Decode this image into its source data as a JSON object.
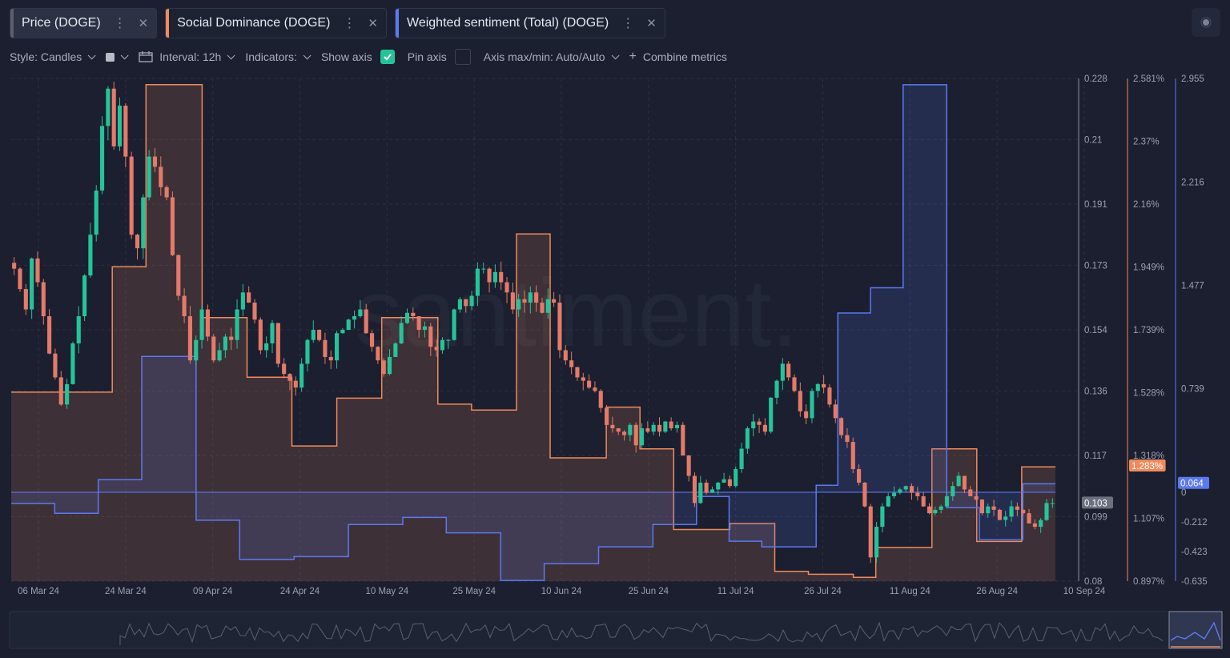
{
  "tabs": [
    {
      "label": "Price (DOGE)",
      "color": "#5b5f6c",
      "active": true
    },
    {
      "label": "Social Dominance (DOGE)",
      "color": "#f08a5d"
    },
    {
      "label": "Weighted sentiment (Total) (DOGE)",
      "color": "#5b79f0"
    }
  ],
  "toolbar": {
    "style": "Style: Candles",
    "interval": "Interval: 12h",
    "indicators": "Indicators:",
    "show_axis": "Show axis",
    "pin_axis": "Pin axis",
    "axis_maxmin": "Axis max/min: Auto/Auto",
    "combine": "Combine metrics"
  },
  "watermark": "santiment.",
  "colors": {
    "up": "#26c39a",
    "down": "#e47a6a",
    "social": "#f08a5d",
    "sentiment": "#5b79f0",
    "grid": "#2b3044"
  },
  "chart_data": {
    "type": "candlestick",
    "x_labels": [
      "06 Mar 24",
      "24 Mar 24",
      "09 Apr 24",
      "24 Apr 24",
      "10 May 24",
      "25 May 24",
      "10 Jun 24",
      "25 Jun 24",
      "11 Jul 24",
      "26 Jul 24",
      "11 Aug 24",
      "26 Aug 24",
      "10 Sep 24"
    ],
    "price_axis": {
      "ticks": [
        "0.228",
        "0.21",
        "0.191",
        "0.173",
        "0.154",
        "0.136",
        "0.117",
        "0.099",
        "0.08"
      ],
      "ylim": [
        0.08,
        0.228
      ],
      "current": "0.103"
    },
    "social_axis": {
      "ticks": [
        "2.581%",
        "2.37%",
        "2.16%",
        "1.949%",
        "1.739%",
        "1.528%",
        "1.318%",
        "1.107%",
        "0.897%"
      ],
      "ylim": [
        0.897,
        2.581
      ],
      "current": "1.283%"
    },
    "sentiment_axis": {
      "ticks": [
        "2.955",
        "2.216",
        "1.477",
        "0.739",
        "0",
        "-0.212",
        "-0.423",
        "-0.635"
      ],
      "ylim": [
        -0.635,
        2.955
      ],
      "current": "0.064"
    },
    "series": [
      {
        "name": "Price (DOGE)",
        "type": "candles",
        "close": [
          0.172,
          0.166,
          0.16,
          0.175,
          0.168,
          0.158,
          0.147,
          0.14,
          0.132,
          0.138,
          0.15,
          0.158,
          0.17,
          0.182,
          0.195,
          0.214,
          0.225,
          0.208,
          0.22,
          0.205,
          0.182,
          0.178,
          0.193,
          0.205,
          0.202,
          0.196,
          0.193,
          0.176,
          0.164,
          0.158,
          0.145,
          0.151,
          0.16,
          0.152,
          0.145,
          0.148,
          0.152,
          0.151,
          0.16,
          0.165,
          0.162,
          0.157,
          0.148,
          0.15,
          0.156,
          0.144,
          0.141,
          0.139,
          0.137,
          0.144,
          0.151,
          0.154,
          0.151,
          0.146,
          0.145,
          0.153,
          0.154,
          0.157,
          0.158,
          0.16,
          0.153,
          0.149,
          0.145,
          0.141,
          0.146,
          0.15,
          0.156,
          0.159,
          0.158,
          0.154,
          0.155,
          0.149,
          0.148,
          0.151,
          0.151,
          0.16,
          0.163,
          0.161,
          0.164,
          0.172,
          0.172,
          0.168,
          0.171,
          0.168,
          0.165,
          0.16,
          0.163,
          0.162,
          0.165,
          0.162,
          0.159,
          0.163,
          0.162,
          0.148,
          0.145,
          0.143,
          0.14,
          0.139,
          0.137,
          0.136,
          0.131,
          0.126,
          0.125,
          0.124,
          0.123,
          0.126,
          0.12,
          0.125,
          0.124,
          0.126,
          0.124,
          0.127,
          0.125,
          0.126,
          0.117,
          0.111,
          0.103,
          0.109,
          0.106,
          0.107,
          0.109,
          0.11,
          0.108,
          0.113,
          0.119,
          0.125,
          0.127,
          0.126,
          0.124,
          0.134,
          0.139,
          0.144,
          0.14,
          0.136,
          0.13,
          0.128,
          0.136,
          0.138,
          0.137,
          0.132,
          0.128,
          0.123,
          0.121,
          0.113,
          0.109,
          0.102,
          0.087,
          0.096,
          0.102,
          0.105,
          0.106,
          0.107,
          0.108,
          0.106,
          0.105,
          0.102,
          0.1,
          0.101,
          0.102,
          0.105,
          0.108,
          0.111,
          0.107,
          0.105,
          0.104,
          0.1,
          0.102,
          0.101,
          0.098,
          0.099,
          0.102,
          0.101,
          0.1,
          0.097,
          0.096,
          0.098,
          0.103,
          0.103
        ]
      },
      {
        "name": "Social Dominance (DOGE)",
        "type": "step-area",
        "values": [
          1.53,
          1.53,
          1.53,
          1.53,
          1.53,
          1.53,
          1.53,
          1.53,
          1.53,
          1.95,
          1.95,
          1.95,
          2.56,
          2.56,
          2.56,
          2.56,
          2.56,
          1.78,
          1.78,
          1.78,
          1.78,
          1.58,
          1.58,
          1.58,
          1.58,
          1.35,
          1.35,
          1.35,
          1.35,
          1.51,
          1.51,
          1.51,
          1.51,
          1.78,
          1.78,
          1.78,
          1.78,
          1.78,
          1.49,
          1.49,
          1.49,
          1.47,
          1.47,
          1.47,
          1.47,
          2.06,
          2.06,
          2.06,
          1.31,
          1.31,
          1.31,
          1.31,
          1.31,
          1.48,
          1.48,
          1.48,
          1.34,
          1.34,
          1.34,
          1.07,
          1.07,
          1.07,
          1.07,
          1.07,
          1.09,
          1.09,
          1.09,
          1.09,
          0.93,
          0.93,
          0.93,
          0.92,
          0.92,
          0.92,
          0.92,
          0.91,
          0.91,
          1.01,
          1.01,
          1.01,
          1.01,
          1.01,
          1.34,
          1.34,
          1.34,
          1.34,
          1.03,
          1.03,
          1.03,
          1.03,
          1.28,
          1.28,
          1.28
        ]
      },
      {
        "name": "Weighted sentiment (Total) (DOGE)",
        "type": "step-area",
        "values": [
          -0.08,
          -0.08,
          -0.08,
          -0.08,
          -0.15,
          -0.15,
          -0.15,
          -0.15,
          0.09,
          0.09,
          0.09,
          0.09,
          0.97,
          0.97,
          0.97,
          0.97,
          0.97,
          -0.2,
          -0.2,
          -0.2,
          -0.2,
          -0.48,
          -0.48,
          -0.48,
          -0.48,
          -0.48,
          -0.46,
          -0.46,
          -0.46,
          -0.46,
          -0.46,
          -0.23,
          -0.23,
          -0.23,
          -0.23,
          -0.23,
          -0.18,
          -0.18,
          -0.18,
          -0.18,
          -0.29,
          -0.29,
          -0.29,
          -0.29,
          -0.29,
          -0.63,
          -0.63,
          -0.63,
          -0.63,
          -0.51,
          -0.51,
          -0.51,
          -0.51,
          -0.51,
          -0.39,
          -0.39,
          -0.39,
          -0.39,
          -0.39,
          -0.23,
          -0.23,
          -0.23,
          -0.23,
          -0.03,
          -0.03,
          -0.03,
          -0.35,
          -0.35,
          -0.35,
          -0.39,
          -0.39,
          -0.39,
          -0.39,
          -0.39,
          0.05,
          0.05,
          1.28,
          1.28,
          1.28,
          1.46,
          1.46,
          1.46,
          2.91,
          2.91,
          2.91,
          2.91,
          -0.11,
          -0.11,
          -0.11,
          -0.34,
          -0.34,
          -0.34,
          -0.34,
          0.06,
          0.06,
          0.06
        ]
      }
    ]
  }
}
